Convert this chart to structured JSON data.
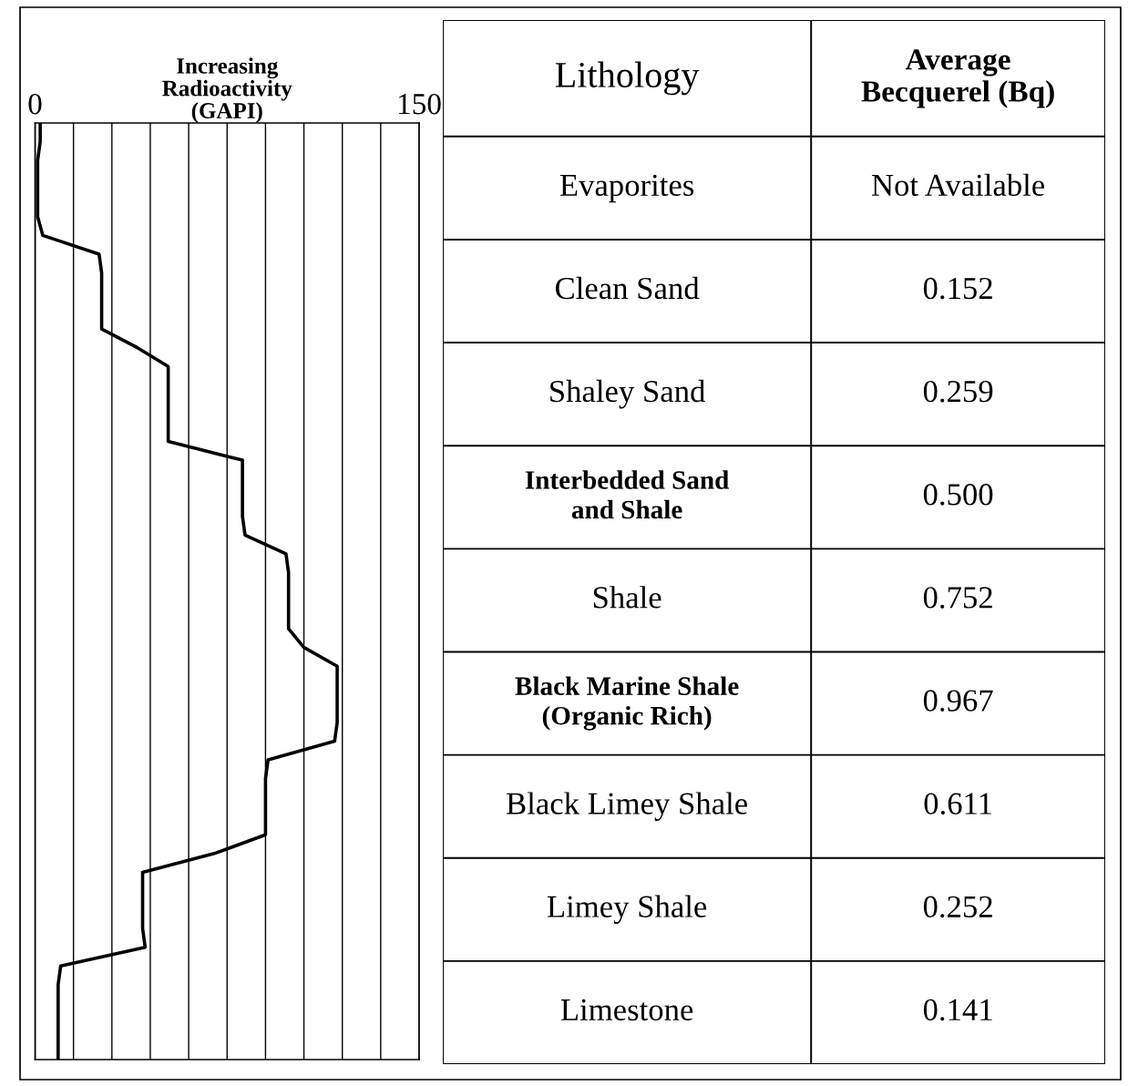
{
  "chart_data": [
    {
      "type": "line",
      "orientation": "horizontal",
      "xlabel": "Increasing\nRadioactivity\n(GAPI)",
      "categories": [
        null,
        null,
        null,
        null,
        null,
        null,
        null,
        null,
        null,
        null,
        null,
        null,
        null,
        null,
        null,
        null,
        null,
        null,
        null,
        null,
        null,
        null,
        null,
        null,
        null,
        null,
        null,
        null,
        null,
        null,
        null,
        null,
        null,
        null,
        null,
        null,
        null,
        null,
        null,
        null,
        null,
        null,
        null,
        null,
        null,
        null,
        null,
        null,
        null,
        null,
        null
      ],
      "series": [
        {
          "color": "#000000",
          "values": [
            2,
            2,
            1,
            1,
            1,
            1,
            3,
            25,
            26,
            26,
            26,
            26,
            40,
            52,
            52,
            52,
            52,
            52,
            81,
            81,
            81,
            81,
            82,
            98,
            99,
            99,
            99,
            99,
            105,
            118,
            118,
            118,
            118,
            117,
            91,
            90,
            90,
            90,
            90,
            70,
            42,
            42,
            42,
            42,
            43,
            10,
            9,
            9,
            9,
            9,
            9
          ]
        }
      ],
      "xlim": [
        0,
        150
      ],
      "xticks": [
        0,
        {
          "value": 15,
          "label": null
        },
        {
          "value": 30,
          "label": null
        },
        {
          "value": 45,
          "label": null
        },
        {
          "value": 60,
          "label": null
        },
        {
          "value": 75,
          "label": null
        },
        {
          "value": 90,
          "label": null
        },
        {
          "value": 105,
          "label": null
        },
        {
          "value": 120,
          "label": null
        },
        {
          "value": 135,
          "label": null
        },
        150
      ],
      "grid": "x",
      "tick_labels": "x"
    },
    {
      "type": "other",
      "annotations": [
        "Lithology",
        "Average\nBecquerel (Bq)"
      ],
      "categories": [
        "Evaporites",
        "Clean Sand",
        "Shaley Sand",
        "Interbedded Sand\nand Shale",
        "Shale",
        "Black Marine Shale\n(Organic Rich)",
        "Black Limey Shale",
        "Limey Shale",
        "Limestone"
      ],
      "value_labels": [
        "Not Available",
        "0.152",
        "0.259",
        "0.500",
        "0.752",
        "0.967",
        "0.611",
        "0.252",
        "0.141"
      ]
    }
  ]
}
